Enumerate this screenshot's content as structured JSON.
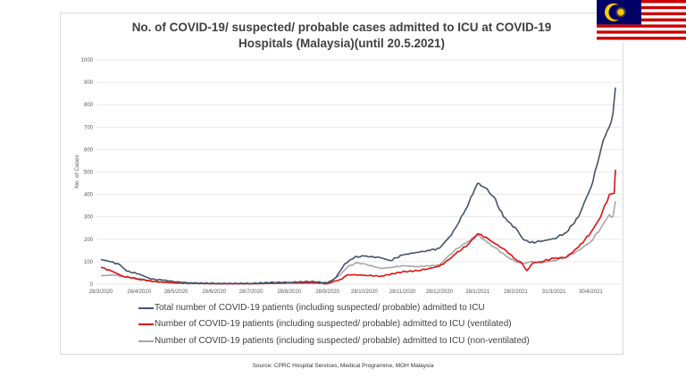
{
  "chart_data": {
    "type": "line",
    "title": "No. of COVID-19/ suspected/ probable cases admitted to ICU at COVID-19 Hospitals (Malaysia)(until 20.5.2021)",
    "title_lines": [
      "No. of COVID-19/ suspected/ probable cases admitted to ICU at COVID-19",
      "Hospitals (Malaysia)(until 20.5.2021)"
    ],
    "xlabel": "",
    "ylabel": "No. of Cases",
    "ylim": [
      0,
      1000
    ],
    "yticks": [
      0,
      100,
      200,
      300,
      400,
      500,
      600,
      700,
      800,
      900,
      1000
    ],
    "xlim": [
      "2020-03-28",
      "2021-05-20"
    ],
    "xticks": [
      {
        "date": "2020-03-28",
        "label": "28/3/2020"
      },
      {
        "date": "2020-04-28",
        "label": "28/4/2020"
      },
      {
        "date": "2020-05-28",
        "label": "28/5/2020"
      },
      {
        "date": "2020-06-28",
        "label": "28/6/2020"
      },
      {
        "date": "2020-07-28",
        "label": "28/7/2020"
      },
      {
        "date": "2020-08-28",
        "label": "28/8/2020"
      },
      {
        "date": "2020-09-28",
        "label": "28/9/2020"
      },
      {
        "date": "2020-10-28",
        "label": "28/10/2020"
      },
      {
        "date": "2020-11-28",
        "label": "28/11/2020"
      },
      {
        "date": "2020-12-28",
        "label": "28/12/2020"
      },
      {
        "date": "2021-01-28",
        "label": "28/1/2021"
      },
      {
        "date": "2021-02-28",
        "label": "28/2/2021"
      },
      {
        "date": "2021-03-31",
        "label": "31/3/2021"
      },
      {
        "date": "2021-04-30",
        "label": "30/4/2021"
      }
    ],
    "grid": true,
    "legend_position": "bottom",
    "series": [
      {
        "name": "Total number of COVID-19 patients (including suspected/ probable) admitted to ICU",
        "color": "#44546a",
        "points": [
          [
            "2020-03-28",
            110
          ],
          [
            "2020-04-05",
            100
          ],
          [
            "2020-04-12",
            88
          ],
          [
            "2020-04-18",
            58
          ],
          [
            "2020-04-28",
            45
          ],
          [
            "2020-05-08",
            22
          ],
          [
            "2020-05-18",
            18
          ],
          [
            "2020-05-28",
            10
          ],
          [
            "2020-06-10",
            5
          ],
          [
            "2020-06-28",
            3
          ],
          [
            "2020-07-28",
            3
          ],
          [
            "2020-08-15",
            8
          ],
          [
            "2020-08-28",
            8
          ],
          [
            "2020-09-15",
            12
          ],
          [
            "2020-09-28",
            5
          ],
          [
            "2020-10-05",
            30
          ],
          [
            "2020-10-12",
            90
          ],
          [
            "2020-10-20",
            120
          ],
          [
            "2020-10-28",
            125
          ],
          [
            "2020-11-10",
            118
          ],
          [
            "2020-11-18",
            105
          ],
          [
            "2020-11-28",
            130
          ],
          [
            "2020-12-10",
            142
          ],
          [
            "2020-12-20",
            150
          ],
          [
            "2020-12-28",
            160
          ],
          [
            "2021-01-05",
            210
          ],
          [
            "2021-01-10",
            250
          ],
          [
            "2021-01-18",
            330
          ],
          [
            "2021-01-24",
            400
          ],
          [
            "2021-01-28",
            450
          ],
          [
            "2021-02-03",
            430
          ],
          [
            "2021-02-10",
            390
          ],
          [
            "2021-02-18",
            300
          ],
          [
            "2021-02-24",
            270
          ],
          [
            "2021-03-01",
            243
          ],
          [
            "2021-03-06",
            200
          ],
          [
            "2021-03-12",
            185
          ],
          [
            "2021-03-20",
            190
          ],
          [
            "2021-03-31",
            203
          ],
          [
            "2021-04-10",
            230
          ],
          [
            "2021-04-20",
            300
          ],
          [
            "2021-04-26",
            380
          ],
          [
            "2021-04-30",
            430
          ],
          [
            "2021-05-05",
            530
          ],
          [
            "2021-05-10",
            640
          ],
          [
            "2021-05-15",
            700
          ],
          [
            "2021-05-18",
            760
          ],
          [
            "2021-05-20",
            877
          ]
        ]
      },
      {
        "name": "Number of COVID-19 patients (including suspected/ probable) admitted to ICU (ventilated)",
        "color": "#e01010",
        "points": [
          [
            "2020-03-28",
            75
          ],
          [
            "2020-04-05",
            60
          ],
          [
            "2020-04-15",
            35
          ],
          [
            "2020-04-28",
            22
          ],
          [
            "2020-05-10",
            12
          ],
          [
            "2020-05-28",
            5
          ],
          [
            "2020-06-28",
            2
          ],
          [
            "2020-07-28",
            2
          ],
          [
            "2020-08-28",
            5
          ],
          [
            "2020-09-20",
            5
          ],
          [
            "2020-09-28",
            2
          ],
          [
            "2020-10-08",
            20
          ],
          [
            "2020-10-15",
            42
          ],
          [
            "2020-10-28",
            40
          ],
          [
            "2020-11-10",
            35
          ],
          [
            "2020-11-28",
            55
          ],
          [
            "2020-12-10",
            60
          ],
          [
            "2020-12-20",
            70
          ],
          [
            "2020-12-28",
            80
          ],
          [
            "2021-01-05",
            110
          ],
          [
            "2021-01-10",
            135
          ],
          [
            "2021-01-20",
            175
          ],
          [
            "2021-01-28",
            225
          ],
          [
            "2021-02-05",
            205
          ],
          [
            "2021-02-10",
            185
          ],
          [
            "2021-02-20",
            150
          ],
          [
            "2021-02-28",
            110
          ],
          [
            "2021-03-05",
            95
          ],
          [
            "2021-03-09",
            60
          ],
          [
            "2021-03-14",
            95
          ],
          [
            "2021-03-20",
            100
          ],
          [
            "2021-03-31",
            115
          ],
          [
            "2021-04-10",
            120
          ],
          [
            "2021-04-20",
            165
          ],
          [
            "2021-04-30",
            230
          ],
          [
            "2021-05-08",
            300
          ],
          [
            "2021-05-15",
            400
          ],
          [
            "2021-05-19",
            405
          ],
          [
            "2021-05-20",
            510
          ]
        ]
      },
      {
        "name": "Number of COVID-19 patients (including suspected/ probable) admitted to ICU (non-ventilated)",
        "color": "#a6a6a6",
        "points": [
          [
            "2020-03-28",
            38
          ],
          [
            "2020-04-08",
            40
          ],
          [
            "2020-04-18",
            30
          ],
          [
            "2020-04-28",
            25
          ],
          [
            "2020-05-10",
            10
          ],
          [
            "2020-05-28",
            5
          ],
          [
            "2020-06-28",
            2
          ],
          [
            "2020-07-28",
            2
          ],
          [
            "2020-08-28",
            6
          ],
          [
            "2020-09-20",
            8
          ],
          [
            "2020-09-28",
            3
          ],
          [
            "2020-10-08",
            40
          ],
          [
            "2020-10-15",
            80
          ],
          [
            "2020-10-22",
            95
          ],
          [
            "2020-10-28",
            90
          ],
          [
            "2020-11-10",
            70
          ],
          [
            "2020-11-20",
            75
          ],
          [
            "2020-11-28",
            82
          ],
          [
            "2020-12-10",
            78
          ],
          [
            "2020-12-28",
            85
          ],
          [
            "2021-01-05",
            130
          ],
          [
            "2021-01-12",
            160
          ],
          [
            "2021-01-20",
            190
          ],
          [
            "2021-01-28",
            220
          ],
          [
            "2021-02-05",
            185
          ],
          [
            "2021-02-12",
            160
          ],
          [
            "2021-02-20",
            125
          ],
          [
            "2021-02-28",
            100
          ],
          [
            "2021-03-05",
            90
          ],
          [
            "2021-03-12",
            100
          ],
          [
            "2021-03-20",
            95
          ],
          [
            "2021-03-31",
            105
          ],
          [
            "2021-04-10",
            120
          ],
          [
            "2021-04-20",
            150
          ],
          [
            "2021-04-30",
            190
          ],
          [
            "2021-05-08",
            250
          ],
          [
            "2021-05-15",
            310
          ],
          [
            "2021-05-18",
            300
          ],
          [
            "2021-05-20",
            370
          ]
        ]
      }
    ]
  },
  "source": "Source: CPRC Hospital Services, Medical Programme, MOH Malaysia",
  "flag": {
    "country": "Malaysia",
    "colors": {
      "red": "#cc0001",
      "white": "#ffffff",
      "blue": "#010066",
      "yellow": "#ffcc00"
    }
  }
}
